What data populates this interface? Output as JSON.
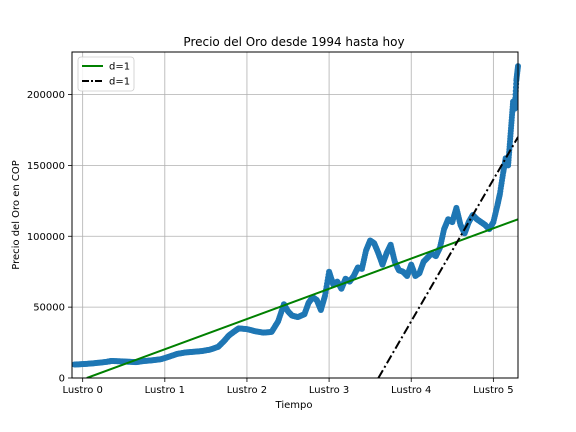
{
  "chart_data": {
    "type": "scatter",
    "title": "Precio del Oro desde 1994 hasta hoy",
    "xlabel": "Tiempo",
    "ylabel": "Precio del Oro en COP",
    "xlim": [
      -0.13,
      5.3
    ],
    "ylim": [
      0,
      230000
    ],
    "grid": true,
    "legend_position": "top-left",
    "x_ticks": [
      {
        "value": 0,
        "label": "Lustro 0"
      },
      {
        "value": 1,
        "label": "Lustro 1"
      },
      {
        "value": 2,
        "label": "Lustro 2"
      },
      {
        "value": 3,
        "label": "Lustro 3"
      },
      {
        "value": 4,
        "label": "Lustro 4"
      },
      {
        "value": 5,
        "label": "Lustro 5"
      }
    ],
    "y_ticks": [
      {
        "value": 0,
        "label": "0"
      },
      {
        "value": 50000,
        "label": "50000"
      },
      {
        "value": 100000,
        "label": "100000"
      },
      {
        "value": 150000,
        "label": "150000"
      },
      {
        "value": 200000,
        "label": "200000"
      }
    ],
    "scatter_color": "#1f77b4",
    "scatter_points": [
      [
        -0.1,
        9500
      ],
      [
        0.0,
        9800
      ],
      [
        0.1,
        10200
      ],
      [
        0.2,
        10800
      ],
      [
        0.3,
        11500
      ],
      [
        0.35,
        12000
      ],
      [
        0.45,
        11800
      ],
      [
        0.55,
        11500
      ],
      [
        0.65,
        11200
      ],
      [
        0.75,
        12000
      ],
      [
        0.85,
        12500
      ],
      [
        0.95,
        13200
      ],
      [
        1.05,
        15000
      ],
      [
        1.15,
        17000
      ],
      [
        1.25,
        18000
      ],
      [
        1.35,
        18500
      ],
      [
        1.45,
        19000
      ],
      [
        1.55,
        20000
      ],
      [
        1.65,
        22000
      ],
      [
        1.72,
        26000
      ],
      [
        1.78,
        30000
      ],
      [
        1.85,
        33000
      ],
      [
        1.9,
        35000
      ],
      [
        2.0,
        34500
      ],
      [
        2.1,
        33000
      ],
      [
        2.2,
        32000
      ],
      [
        2.3,
        32500
      ],
      [
        2.38,
        40000
      ],
      [
        2.45,
        52000
      ],
      [
        2.5,
        47000
      ],
      [
        2.55,
        44000
      ],
      [
        2.62,
        43000
      ],
      [
        2.7,
        45000
      ],
      [
        2.75,
        53000
      ],
      [
        2.8,
        57000
      ],
      [
        2.85,
        55000
      ],
      [
        2.9,
        48000
      ],
      [
        2.95,
        58000
      ],
      [
        3.0,
        75000
      ],
      [
        3.05,
        66000
      ],
      [
        3.1,
        68000
      ],
      [
        3.15,
        63000
      ],
      [
        3.2,
        70000
      ],
      [
        3.25,
        68000
      ],
      [
        3.3,
        72000
      ],
      [
        3.35,
        78000
      ],
      [
        3.4,
        77000
      ],
      [
        3.45,
        90000
      ],
      [
        3.5,
        97000
      ],
      [
        3.55,
        95000
      ],
      [
        3.6,
        88000
      ],
      [
        3.65,
        80000
      ],
      [
        3.7,
        88000
      ],
      [
        3.75,
        94000
      ],
      [
        3.8,
        82000
      ],
      [
        3.85,
        76000
      ],
      [
        3.9,
        75000
      ],
      [
        3.95,
        72000
      ],
      [
        4.0,
        80000
      ],
      [
        4.05,
        72000
      ],
      [
        4.1,
        74000
      ],
      [
        4.15,
        82000
      ],
      [
        4.2,
        85000
      ],
      [
        4.25,
        88000
      ],
      [
        4.3,
        86000
      ],
      [
        4.35,
        92000
      ],
      [
        4.4,
        105000
      ],
      [
        4.45,
        112000
      ],
      [
        4.5,
        110000
      ],
      [
        4.55,
        120000
      ],
      [
        4.6,
        108000
      ],
      [
        4.65,
        102000
      ],
      [
        4.7,
        110000
      ],
      [
        4.75,
        115000
      ],
      [
        4.8,
        112000
      ],
      [
        4.85,
        110000
      ],
      [
        4.9,
        108000
      ],
      [
        4.95,
        105000
      ],
      [
        5.0,
        110000
      ],
      [
        5.05,
        122000
      ],
      [
        5.08,
        130000
      ],
      [
        5.12,
        145000
      ],
      [
        5.15,
        155000
      ],
      [
        5.18,
        150000
      ],
      [
        5.2,
        165000
      ],
      [
        5.22,
        180000
      ],
      [
        5.24,
        195000
      ],
      [
        5.26,
        190000
      ],
      [
        5.28,
        210000
      ],
      [
        5.3,
        220000
      ]
    ],
    "series": [
      {
        "name": "d=1",
        "type": "line",
        "color": "#008000",
        "dash": "solid",
        "x": [
          0.05,
          5.3
        ],
        "y": [
          0,
          112000
        ]
      },
      {
        "name": "d=1",
        "type": "line",
        "color": "#000000",
        "dash": "dashdot",
        "x": [
          3.6,
          5.3
        ],
        "y": [
          0,
          170000
        ]
      }
    ]
  }
}
